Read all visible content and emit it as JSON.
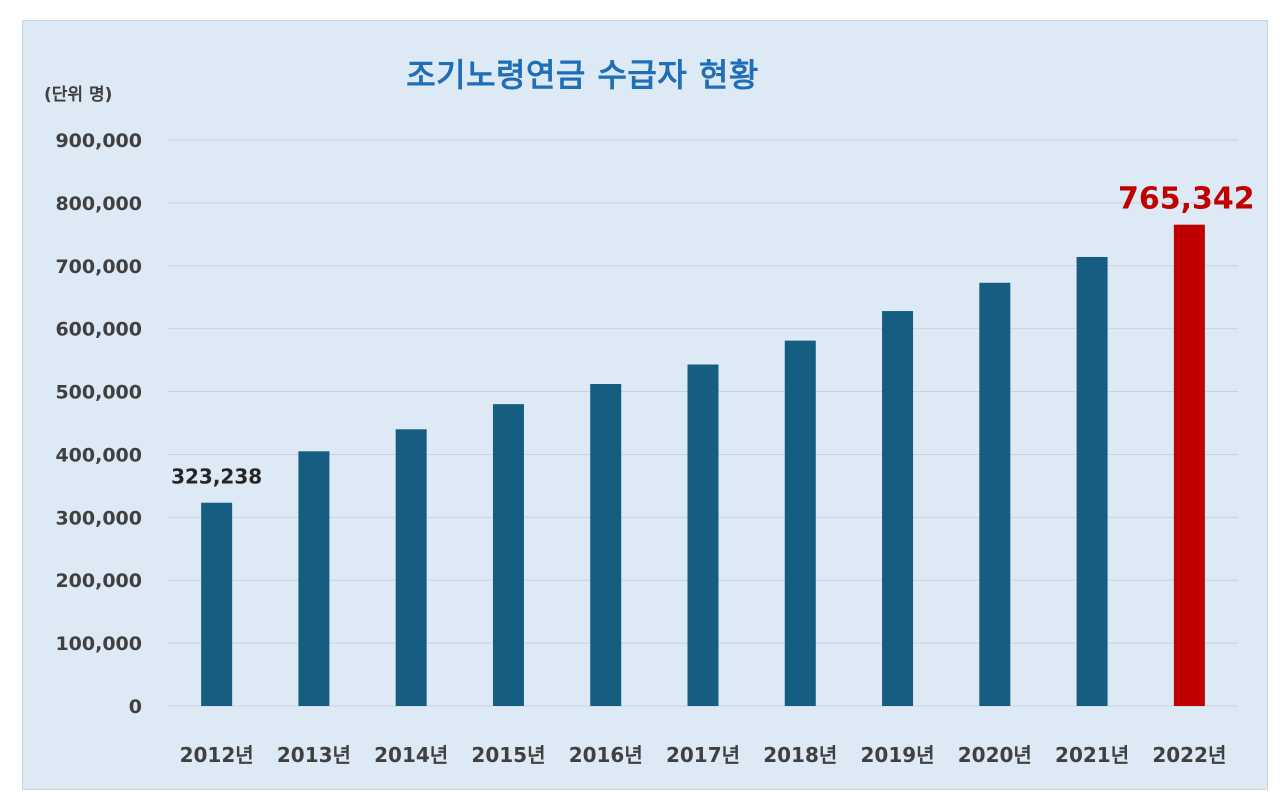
{
  "chart_data": {
    "type": "bar",
    "title": "조기노령연금 수급자 현황",
    "unit_label": "(단위 명)",
    "categories": [
      "2012년",
      "2013년",
      "2014년",
      "2015년",
      "2016년",
      "2017년",
      "2018년",
      "2019년",
      "2020년",
      "2021년",
      "2022년"
    ],
    "values": [
      323238,
      405000,
      440000,
      480000,
      512000,
      543000,
      581000,
      628000,
      673000,
      714000,
      765342
    ],
    "data_labels": [
      {
        "category": "2012년",
        "text": "323,238"
      },
      {
        "category": "2022년",
        "text": "765,342"
      }
    ],
    "ylim": [
      0,
      900000
    ],
    "yticks": [
      "0",
      "100,000",
      "200,000",
      "300,000",
      "400,000",
      "500,000",
      "600,000",
      "700,000",
      "800,000",
      "900,000"
    ],
    "grid": true,
    "colors": {
      "bar": "#155e82",
      "highlight_bar": "#c00000",
      "title": "#1f6fb8",
      "background": "#dde9f5",
      "gridline": "#c8d3de",
      "axis_text": "#404040",
      "highlight_label": "#c00000"
    },
    "highlight_category": "2022년"
  }
}
